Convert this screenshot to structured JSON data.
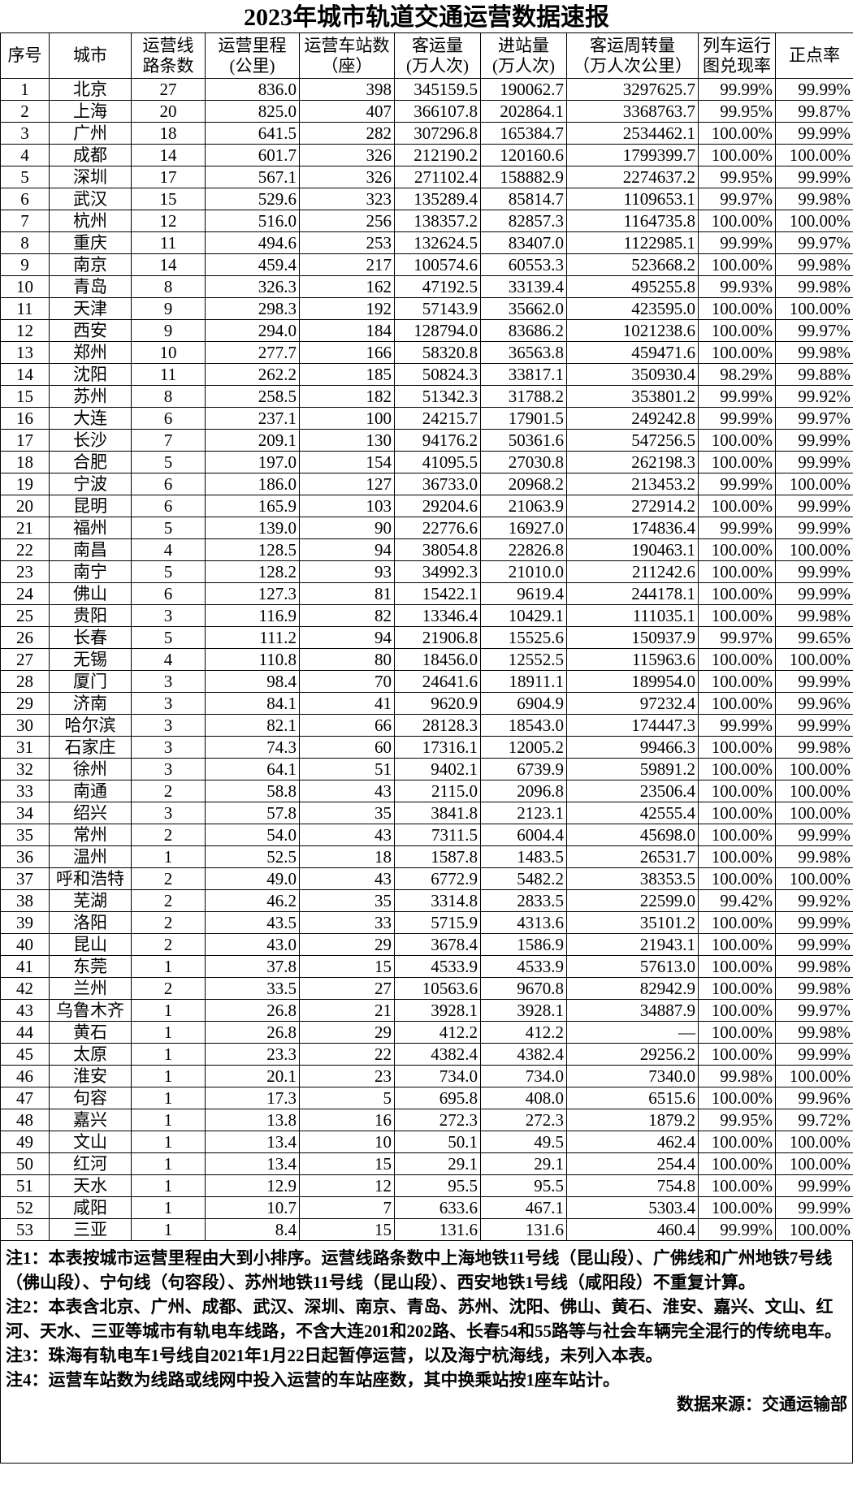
{
  "title": "2023年城市轨道交通运营数据速报",
  "headers": [
    "序号",
    "城市",
    "运营线\n路条数",
    "运营里程\n(公里)",
    "运营车站数\n（座）",
    "客运量\n(万人次)",
    "进站量\n(万人次)",
    "客运周转量\n（万人次公里）",
    "列车运行\n图兑现率",
    "正点率"
  ],
  "rows": [
    [
      "1",
      "北京",
      "27",
      "836.0",
      "398",
      "345159.5",
      "190062.7",
      "3297625.7",
      "99.99%",
      "99.99%"
    ],
    [
      "2",
      "上海",
      "20",
      "825.0",
      "407",
      "366107.8",
      "202864.1",
      "3368763.7",
      "99.95%",
      "99.87%"
    ],
    [
      "3",
      "广州",
      "18",
      "641.5",
      "282",
      "307296.8",
      "165384.7",
      "2534462.1",
      "100.00%",
      "99.99%"
    ],
    [
      "4",
      "成都",
      "14",
      "601.7",
      "326",
      "212190.2",
      "120160.6",
      "1799399.7",
      "100.00%",
      "100.00%"
    ],
    [
      "5",
      "深圳",
      "17",
      "567.1",
      "326",
      "271102.4",
      "158882.9",
      "2274637.2",
      "99.95%",
      "99.99%"
    ],
    [
      "6",
      "武汉",
      "15",
      "529.6",
      "323",
      "135289.4",
      "85814.7",
      "1109653.1",
      "99.97%",
      "99.98%"
    ],
    [
      "7",
      "杭州",
      "12",
      "516.0",
      "256",
      "138357.2",
      "82857.3",
      "1164735.8",
      "100.00%",
      "100.00%"
    ],
    [
      "8",
      "重庆",
      "11",
      "494.6",
      "253",
      "132624.5",
      "83407.0",
      "1122985.1",
      "99.99%",
      "99.97%"
    ],
    [
      "9",
      "南京",
      "14",
      "459.4",
      "217",
      "100574.6",
      "60553.3",
      "523668.2",
      "100.00%",
      "99.98%"
    ],
    [
      "10",
      "青岛",
      "8",
      "326.3",
      "162",
      "47192.5",
      "33139.4",
      "495255.8",
      "99.93%",
      "99.98%"
    ],
    [
      "11",
      "天津",
      "9",
      "298.3",
      "192",
      "57143.9",
      "35662.0",
      "423595.0",
      "100.00%",
      "100.00%"
    ],
    [
      "12",
      "西安",
      "9",
      "294.0",
      "184",
      "128794.0",
      "83686.2",
      "1021238.6",
      "100.00%",
      "99.97%"
    ],
    [
      "13",
      "郑州",
      "10",
      "277.7",
      "166",
      "58320.8",
      "36563.8",
      "459471.6",
      "100.00%",
      "99.98%"
    ],
    [
      "14",
      "沈阳",
      "11",
      "262.2",
      "185",
      "50824.3",
      "33817.1",
      "350930.4",
      "98.29%",
      "99.88%"
    ],
    [
      "15",
      "苏州",
      "8",
      "258.5",
      "182",
      "51342.3",
      "31788.2",
      "353801.2",
      "99.99%",
      "99.92%"
    ],
    [
      "16",
      "大连",
      "6",
      "237.1",
      "100",
      "24215.7",
      "17901.5",
      "249242.8",
      "99.99%",
      "99.97%"
    ],
    [
      "17",
      "长沙",
      "7",
      "209.1",
      "130",
      "94176.2",
      "50361.6",
      "547256.5",
      "100.00%",
      "99.99%"
    ],
    [
      "18",
      "合肥",
      "5",
      "197.0",
      "154",
      "41095.5",
      "27030.8",
      "262198.3",
      "100.00%",
      "99.99%"
    ],
    [
      "19",
      "宁波",
      "6",
      "186.0",
      "127",
      "36733.0",
      "20968.2",
      "213453.2",
      "99.99%",
      "100.00%"
    ],
    [
      "20",
      "昆明",
      "6",
      "165.9",
      "103",
      "29204.6",
      "21063.9",
      "272914.2",
      "100.00%",
      "99.99%"
    ],
    [
      "21",
      "福州",
      "5",
      "139.0",
      "90",
      "22776.6",
      "16927.0",
      "174836.4",
      "99.99%",
      "99.99%"
    ],
    [
      "22",
      "南昌",
      "4",
      "128.5",
      "94",
      "38054.8",
      "22826.8",
      "190463.1",
      "100.00%",
      "100.00%"
    ],
    [
      "23",
      "南宁",
      "5",
      "128.2",
      "93",
      "34992.3",
      "21010.0",
      "211242.6",
      "100.00%",
      "99.99%"
    ],
    [
      "24",
      "佛山",
      "6",
      "127.3",
      "81",
      "15422.1",
      "9619.4",
      "244178.1",
      "100.00%",
      "99.99%"
    ],
    [
      "25",
      "贵阳",
      "3",
      "116.9",
      "82",
      "13346.4",
      "10429.1",
      "111035.1",
      "100.00%",
      "99.98%"
    ],
    [
      "26",
      "长春",
      "5",
      "111.2",
      "94",
      "21906.8",
      "15525.6",
      "150937.9",
      "99.97%",
      "99.65%"
    ],
    [
      "27",
      "无锡",
      "4",
      "110.8",
      "80",
      "18456.0",
      "12552.5",
      "115963.6",
      "100.00%",
      "100.00%"
    ],
    [
      "28",
      "厦门",
      "3",
      "98.4",
      "70",
      "24641.6",
      "18911.1",
      "189954.0",
      "100.00%",
      "99.99%"
    ],
    [
      "29",
      "济南",
      "3",
      "84.1",
      "41",
      "9620.9",
      "6904.9",
      "97232.4",
      "100.00%",
      "99.96%"
    ],
    [
      "30",
      "哈尔滨",
      "3",
      "82.1",
      "66",
      "28128.3",
      "18543.0",
      "174447.3",
      "99.99%",
      "99.99%"
    ],
    [
      "31",
      "石家庄",
      "3",
      "74.3",
      "60",
      "17316.1",
      "12005.2",
      "99466.3",
      "100.00%",
      "99.98%"
    ],
    [
      "32",
      "徐州",
      "3",
      "64.1",
      "51",
      "9402.1",
      "6739.9",
      "59891.2",
      "100.00%",
      "100.00%"
    ],
    [
      "33",
      "南通",
      "2",
      "58.8",
      "43",
      "2115.0",
      "2096.8",
      "23506.4",
      "100.00%",
      "100.00%"
    ],
    [
      "34",
      "绍兴",
      "3",
      "57.8",
      "35",
      "3841.8",
      "2123.1",
      "42555.4",
      "100.00%",
      "100.00%"
    ],
    [
      "35",
      "常州",
      "2",
      "54.0",
      "43",
      "7311.5",
      "6004.4",
      "45698.0",
      "100.00%",
      "99.99%"
    ],
    [
      "36",
      "温州",
      "1",
      "52.5",
      "18",
      "1587.8",
      "1483.5",
      "26531.7",
      "100.00%",
      "99.98%"
    ],
    [
      "37",
      "呼和浩特",
      "2",
      "49.0",
      "43",
      "6772.9",
      "5482.2",
      "38353.5",
      "100.00%",
      "100.00%"
    ],
    [
      "38",
      "芜湖",
      "2",
      "46.2",
      "35",
      "3314.8",
      "2833.5",
      "22599.0",
      "99.42%",
      "99.92%"
    ],
    [
      "39",
      "洛阳",
      "2",
      "43.5",
      "33",
      "5715.9",
      "4313.6",
      "35101.2",
      "100.00%",
      "99.99%"
    ],
    [
      "40",
      "昆山",
      "2",
      "43.0",
      "29",
      "3678.4",
      "1586.9",
      "21943.1",
      "100.00%",
      "99.99%"
    ],
    [
      "41",
      "东莞",
      "1",
      "37.8",
      "15",
      "4533.9",
      "4533.9",
      "57613.0",
      "100.00%",
      "99.98%"
    ],
    [
      "42",
      "兰州",
      "2",
      "33.5",
      "27",
      "10563.6",
      "9670.8",
      "82942.9",
      "100.00%",
      "99.98%"
    ],
    [
      "43",
      "乌鲁木齐",
      "1",
      "26.8",
      "21",
      "3928.1",
      "3928.1",
      "34887.9",
      "100.00%",
      "99.97%"
    ],
    [
      "44",
      "黄石",
      "1",
      "26.8",
      "29",
      "412.2",
      "412.2",
      "—",
      "100.00%",
      "99.98%"
    ],
    [
      "45",
      "太原",
      "1",
      "23.3",
      "22",
      "4382.4",
      "4382.4",
      "29256.2",
      "100.00%",
      "99.99%"
    ],
    [
      "46",
      "淮安",
      "1",
      "20.1",
      "23",
      "734.0",
      "734.0",
      "7340.0",
      "99.98%",
      "100.00%"
    ],
    [
      "47",
      "句容",
      "1",
      "17.3",
      "5",
      "695.8",
      "408.0",
      "6515.6",
      "100.00%",
      "99.96%"
    ],
    [
      "48",
      "嘉兴",
      "1",
      "13.8",
      "16",
      "272.3",
      "272.3",
      "1879.2",
      "99.95%",
      "99.72%"
    ],
    [
      "49",
      "文山",
      "1",
      "13.4",
      "10",
      "50.1",
      "49.5",
      "462.4",
      "100.00%",
      "100.00%"
    ],
    [
      "50",
      "红河",
      "1",
      "13.4",
      "15",
      "29.1",
      "29.1",
      "254.4",
      "100.00%",
      "100.00%"
    ],
    [
      "51",
      "天水",
      "1",
      "12.9",
      "12",
      "95.5",
      "95.5",
      "754.8",
      "100.00%",
      "99.99%"
    ],
    [
      "52",
      "咸阳",
      "1",
      "10.7",
      "7",
      "633.6",
      "467.1",
      "5303.4",
      "100.00%",
      "99.99%"
    ],
    [
      "53",
      "三亚",
      "1",
      "8.4",
      "15",
      "131.6",
      "131.6",
      "460.4",
      "99.99%",
      "100.00%"
    ]
  ],
  "notes": [
    "注1：本表按城市运营里程由大到小排序。运营线路条数中上海地铁11号线（昆山段）、广佛线和广州地铁7号线（佛山段）、宁句线（句容段）、苏州地铁11号线（昆山段）、西安地铁1号线（咸阳段）不重复计算。",
    "注2：本表含北京、广州、成都、武汉、深圳、南京、青岛、苏州、沈阳、佛山、黄石、淮安、嘉兴、文山、红河、天水、三亚等城市有轨电车线路，不含大连201和202路、长春54和55路等与社会车辆完全混行的传统电车。",
    "注3：珠海有轨电车1号线自2021年1月22日起暂停运营，以及海宁杭海线，未列入本表。",
    "注4：运营车站数为线路或线网中投入运营的车站座数，其中换乘站按1座车站计。"
  ],
  "source": "数据来源：交通运输部"
}
